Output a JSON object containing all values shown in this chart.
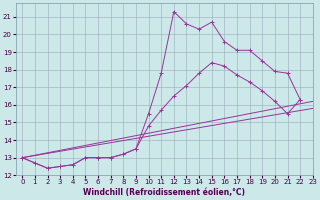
{
  "xlabel": "Windchill (Refroidissement éolien,°C)",
  "bg_color": "#cde8e8",
  "grid_color": "#99aabb",
  "line_color": "#993399",
  "xlim": [
    -0.5,
    23
  ],
  "ylim": [
    12,
    21.8
  ],
  "xticks": [
    0,
    1,
    2,
    3,
    4,
    5,
    6,
    7,
    8,
    9,
    10,
    11,
    12,
    13,
    14,
    15,
    16,
    17,
    18,
    19,
    20,
    21,
    22,
    23
  ],
  "yticks": [
    12,
    13,
    14,
    15,
    16,
    17,
    18,
    19,
    20,
    21
  ],
  "line1_x": [
    0,
    1,
    2,
    3,
    4,
    5,
    6,
    7,
    8,
    9,
    10,
    11,
    12,
    13,
    14,
    15,
    16,
    17,
    18,
    19,
    20,
    21,
    22
  ],
  "line1_y": [
    13.0,
    12.7,
    12.4,
    12.5,
    12.6,
    13.0,
    13.0,
    13.0,
    13.2,
    13.5,
    15.5,
    17.8,
    21.3,
    20.6,
    20.3,
    20.7,
    19.6,
    19.1,
    19.1,
    18.5,
    17.9,
    17.8,
    16.3
  ],
  "line2_x": [
    0,
    1,
    2,
    3,
    4,
    5,
    6,
    7,
    8,
    9,
    10,
    11,
    12,
    13,
    14,
    15,
    16,
    17,
    18,
    19,
    20,
    21,
    22
  ],
  "line2_y": [
    13.0,
    12.7,
    12.4,
    12.5,
    12.6,
    13.0,
    13.0,
    13.0,
    13.2,
    13.5,
    14.8,
    15.7,
    16.5,
    17.1,
    17.8,
    18.4,
    18.2,
    17.7,
    17.3,
    16.8,
    16.2,
    15.5,
    16.3
  ],
  "line3_x": [
    0,
    23
  ],
  "line3_y": [
    13.0,
    16.2
  ],
  "line4_x": [
    0,
    23
  ],
  "line4_y": [
    13.0,
    15.8
  ],
  "marker_symbol": "+",
  "tick_fontsize": 5,
  "xlabel_fontsize": 5.5
}
